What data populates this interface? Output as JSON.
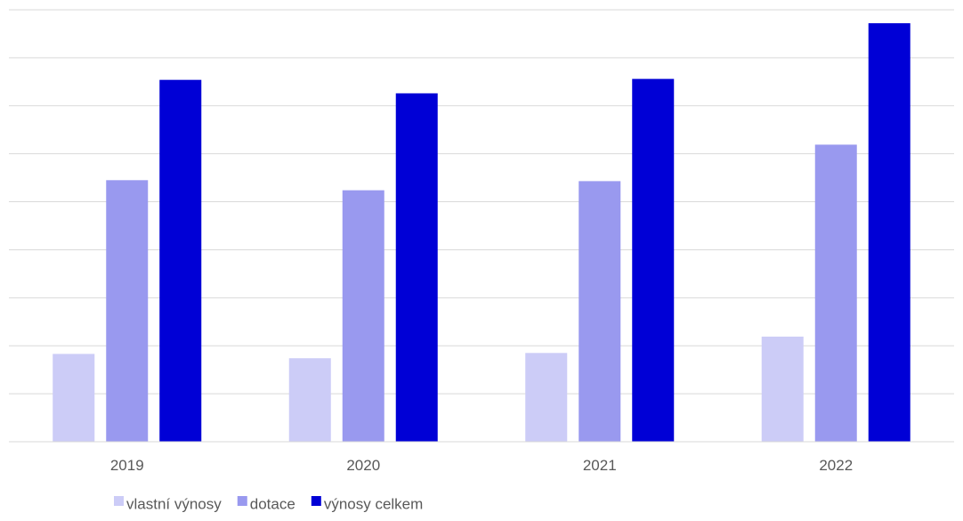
{
  "chart_data": {
    "type": "bar",
    "categories": [
      "2019",
      "2020",
      "2021",
      "2022"
    ],
    "series": [
      {
        "name": "vlastní výnosy",
        "color": "#ccccf7",
        "values": [
          18.3,
          17.4,
          18.5,
          21.9
        ]
      },
      {
        "name": "dotace",
        "color": "#9999ef",
        "values": [
          54.5,
          52.4,
          54.3,
          61.9
        ]
      },
      {
        "name": "výnosy celkem",
        "color": "#0000d6",
        "values": [
          75.4,
          72.6,
          75.6,
          87.2
        ]
      }
    ],
    "ylim": [
      0,
      90
    ],
    "gridlines": 9,
    "grid": true,
    "y_tick_labels_visible": false,
    "legend_position": "bottom-left"
  }
}
